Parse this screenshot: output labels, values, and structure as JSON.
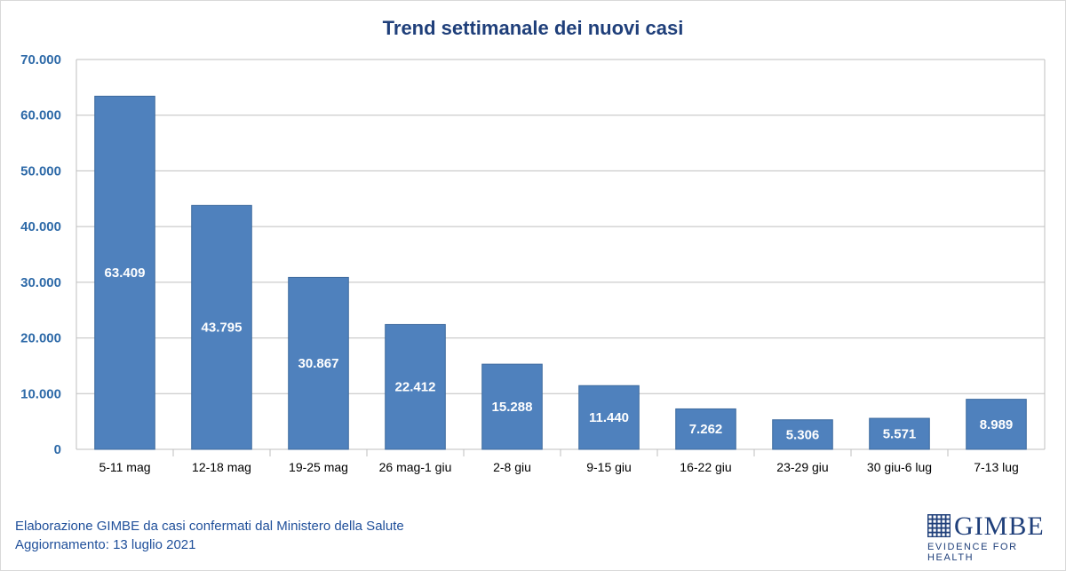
{
  "chart_data": {
    "type": "bar",
    "title": "Trend settimanale dei nuovi casi",
    "categories": [
      "5-11 mag",
      "12-18 mag",
      "19-25 mag",
      "26 mag-1 giu",
      "2-8 giu",
      "9-15 giu",
      "16-22 giu",
      "23-29 giu",
      "30 giu-6 lug",
      "7-13 lug"
    ],
    "values": [
      63409,
      43795,
      30867,
      22412,
      15288,
      11440,
      7262,
      5306,
      5571,
      8989
    ],
    "data_labels": [
      "63.409",
      "43.795",
      "30.867",
      "22.412",
      "15.288",
      "11.440",
      "7.262",
      "5.306",
      "5.571",
      "8.989"
    ],
    "ylim": [
      0,
      70000
    ],
    "yticks": [
      0,
      10000,
      20000,
      30000,
      40000,
      50000,
      60000,
      70000
    ],
    "ytick_labels": [
      "0",
      "10.000",
      "20.000",
      "30.000",
      "40.000",
      "50.000",
      "60.000",
      "70.000"
    ],
    "grid": true,
    "bar_color": "#4f81bd",
    "xlabel": "",
    "ylabel": ""
  },
  "footer": {
    "source": "Elaborazione GIMBE da casi confermati dal Ministero della Salute",
    "updated": "Aggiornamento: 13 luglio 2021"
  },
  "logo": {
    "name": "GIMBE",
    "tagline": "EVIDENCE FOR HEALTH",
    "icon": "gimbe-grid-logo-icon"
  },
  "colors": {
    "title": "#1f3f7a",
    "axis_text": "#2e6aa8",
    "footer_text": "#1f4f9a",
    "grid": "#bfbfbf"
  }
}
